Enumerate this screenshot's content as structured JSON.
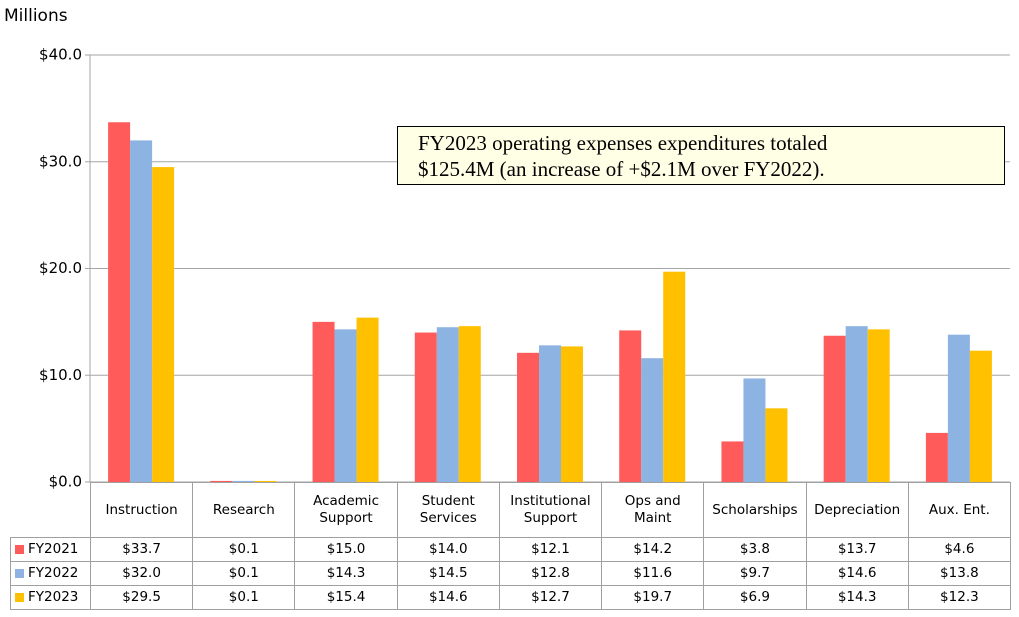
{
  "chart_data": {
    "type": "bar",
    "y_axis_label": "Millions",
    "annotation": [
      "FY2023 operating expenses expenditures totaled",
      "$125.4M (an increase of +$2.1M over FY2022)."
    ],
    "categories": [
      "Instruction",
      "Research",
      "Academic\nSupport",
      "Student\nServices",
      "Institutional\nSupport",
      "Ops and\nMaint",
      "Scholarships",
      "Depreciation",
      "Aux. Ent."
    ],
    "series": [
      {
        "name": "FY2021",
        "color": "#ff5b5b",
        "values": [
          33.7,
          0.1,
          15.0,
          14.0,
          12.1,
          14.2,
          3.8,
          13.7,
          4.6
        ],
        "value_labels": [
          "$33.7",
          "$0.1",
          "$15.0",
          "$14.0",
          "$12.1",
          "$14.2",
          "$3.8",
          "$13.7",
          "$4.6"
        ]
      },
      {
        "name": "FY2022",
        "color": "#8db3e2",
        "values": [
          32.0,
          0.1,
          14.3,
          14.5,
          12.8,
          11.6,
          9.7,
          14.6,
          13.8
        ],
        "value_labels": [
          "$32.0",
          "$0.1",
          "$14.3",
          "$14.5",
          "$12.8",
          "$11.6",
          "$9.7",
          "$14.6",
          "$13.8"
        ]
      },
      {
        "name": "FY2023",
        "color": "#ffc000",
        "values": [
          29.5,
          0.1,
          15.4,
          14.6,
          12.7,
          19.7,
          6.9,
          14.3,
          12.3
        ],
        "value_labels": [
          "$29.5",
          "$0.1",
          "$15.4",
          "$14.6",
          "$12.7",
          "$19.7",
          "$6.9",
          "$14.3",
          "$12.3"
        ]
      }
    ],
    "ylim": [
      0,
      40
    ],
    "yticks": [
      {
        "value": 0,
        "label": "$0.0"
      },
      {
        "value": 10,
        "label": "$10.0"
      },
      {
        "value": 20,
        "label": "$20.0"
      },
      {
        "value": 30,
        "label": "$30.0"
      },
      {
        "value": 40,
        "label": "$40.0"
      }
    ],
    "grid": true
  }
}
